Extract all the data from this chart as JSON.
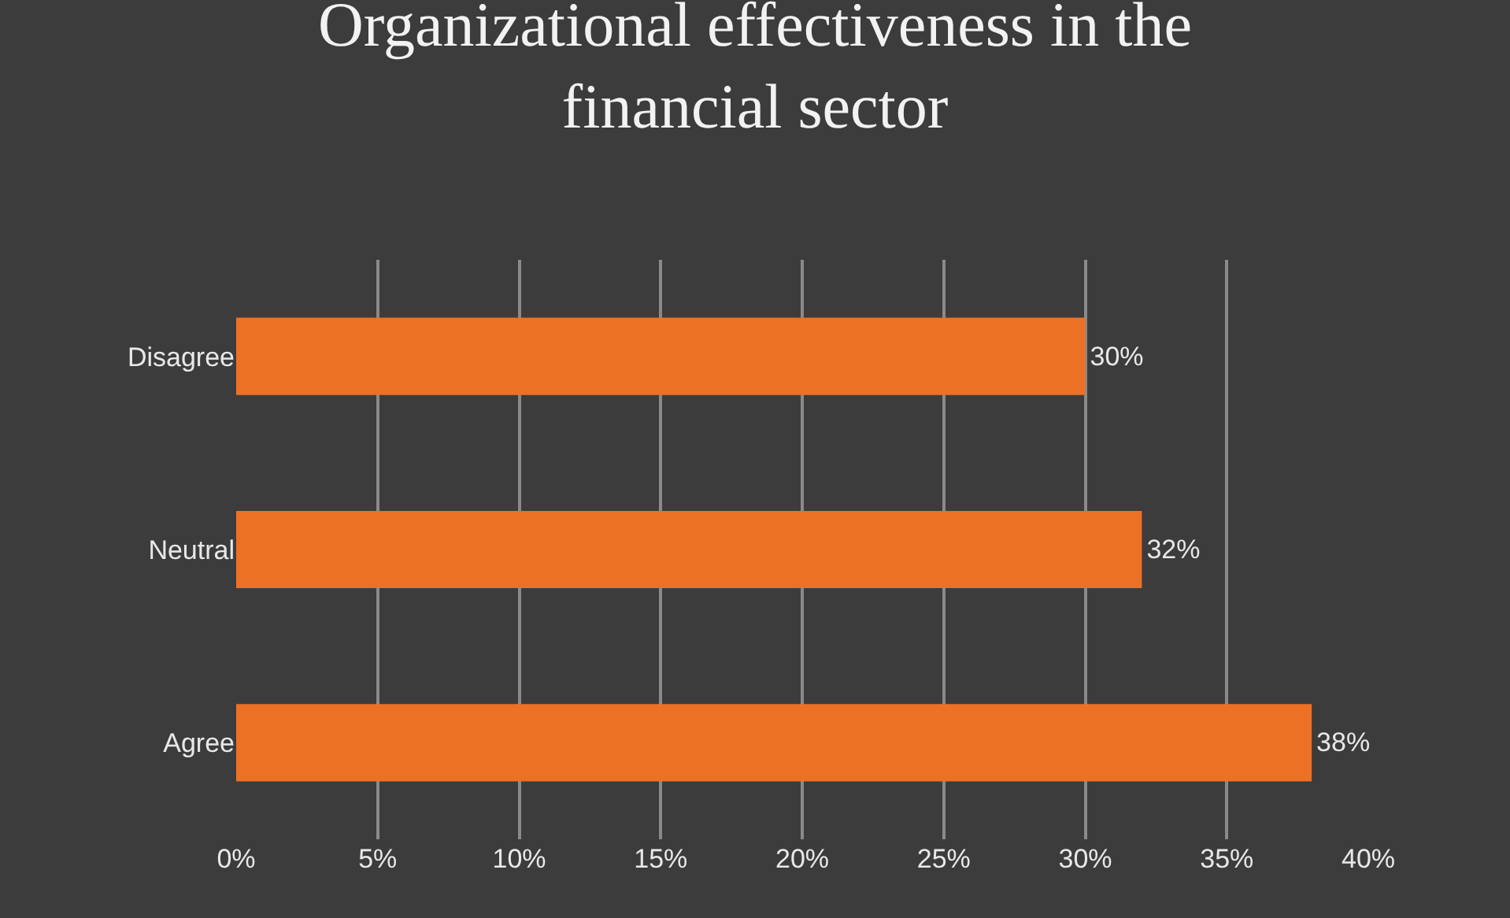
{
  "chart_data": {
    "type": "bar",
    "orientation": "horizontal",
    "title": "Organizational effectiveness in the financial sector",
    "categories": [
      "Disagree",
      "Neutral",
      "Agree"
    ],
    "values": [
      30,
      32,
      38
    ],
    "value_labels": [
      "30%",
      "32%",
      "38%"
    ],
    "color": "#ed7125",
    "xlim": [
      0,
      40
    ],
    "xticks": [
      {
        "value": 0,
        "label": "0%"
      },
      {
        "value": 5,
        "label": "5%"
      },
      {
        "value": 10,
        "label": "10%"
      },
      {
        "value": 15,
        "label": "15%"
      },
      {
        "value": 20,
        "label": "20%"
      },
      {
        "value": 25,
        "label": "25%"
      },
      {
        "value": 30,
        "label": "30%"
      },
      {
        "value": 35,
        "label": "35%"
      },
      {
        "value": 40,
        "label": "40%"
      }
    ],
    "grid": "x"
  }
}
